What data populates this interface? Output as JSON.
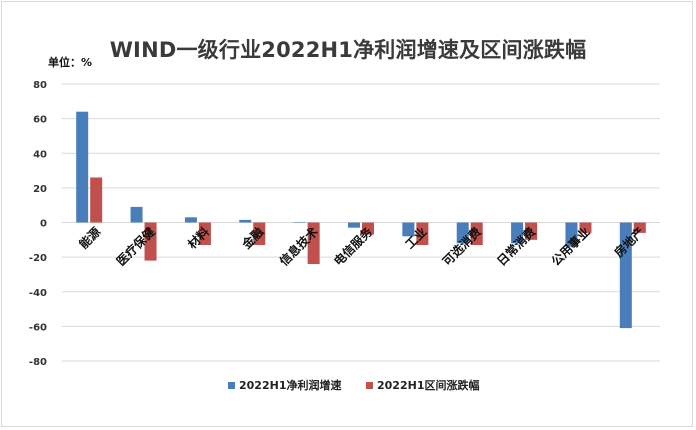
{
  "chart_data": {
    "type": "bar",
    "title": "WIND一级行业2022H1净利润增速及区间涨跌幅",
    "unit_label": "单位：%",
    "categories": [
      "能源",
      "医疗保健",
      "材料",
      "金融",
      "信息技术",
      "电信服务",
      "工业",
      "可选消费",
      "日常消费",
      "公用事业",
      "房地产"
    ],
    "series": [
      {
        "name": "2022H1净利润增速",
        "color": "#4a7ebb",
        "values": [
          64,
          9,
          3,
          1.5,
          0,
          -3,
          -8,
          -12,
          -12,
          -14,
          -61
        ]
      },
      {
        "name": "2022H1区间涨跌幅",
        "color": "#c0504d",
        "values": [
          26,
          -22,
          -13,
          -13,
          -24,
          -7,
          -13,
          -13,
          -10,
          -6,
          -6
        ]
      }
    ],
    "ylim": [
      -80,
      80
    ],
    "yticks": [
      80,
      60,
      40,
      20,
      0,
      -20,
      -40,
      -60,
      -80
    ],
    "grid": true,
    "legend": "bottom"
  }
}
